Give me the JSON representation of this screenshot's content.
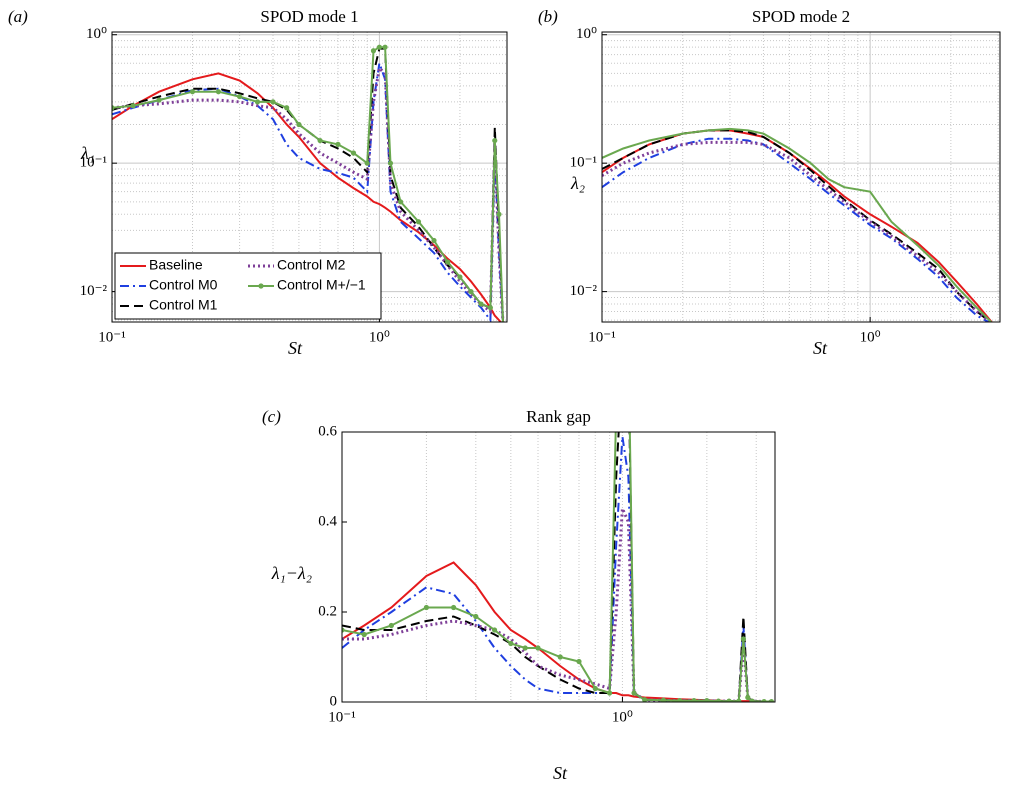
{
  "chart_data": [
    {
      "type": "line",
      "title": "SPOD mode 1",
      "panel_label": "(a)",
      "xlabel": "St",
      "ylabel": "λ₁",
      "xscale": "log",
      "yscale": "log",
      "xlim": [
        0.1,
        3
      ],
      "ylim": [
        0.0058,
        1.05
      ],
      "xticks": [
        {
          "value": 0.1,
          "label": "10⁻¹"
        },
        {
          "value": 1,
          "label": "10⁰"
        }
      ],
      "yticks": [
        {
          "value": 0.01,
          "label": "10⁻²"
        },
        {
          "value": 0.1,
          "label": "10⁻¹"
        },
        {
          "value": 1,
          "label": "10⁰"
        }
      ],
      "xminor": [
        0.2,
        0.3,
        0.4,
        0.5,
        0.6,
        0.7,
        0.8,
        0.9,
        2
      ],
      "yminor": [
        0.006,
        0.007,
        0.008,
        0.009,
        0.02,
        0.03,
        0.04,
        0.05,
        0.06,
        0.07,
        0.08,
        0.09,
        0.2,
        0.3,
        0.4,
        0.5,
        0.6,
        0.7,
        0.8,
        0.9
      ],
      "xgrid": true,
      "ygrid": true,
      "legend": "lower left",
      "legend_columns": 2,
      "x": [
        0.1,
        0.12,
        0.15,
        0.2,
        0.25,
        0.3,
        0.35,
        0.4,
        0.45,
        0.5,
        0.6,
        0.7,
        0.8,
        0.9,
        0.95,
        1.0,
        1.05,
        1.1,
        1.2,
        1.4,
        1.6,
        1.8,
        2.0,
        2.2,
        2.4,
        2.6,
        2.7,
        2.8,
        2.9
      ],
      "series": [
        {
          "name": "Baseline",
          "color": "#e41a1c",
          "dash": "solid",
          "values": [
            0.22,
            0.28,
            0.36,
            0.45,
            0.5,
            0.44,
            0.35,
            0.27,
            0.2,
            0.16,
            0.1,
            0.077,
            0.064,
            0.055,
            0.05,
            0.048,
            0.045,
            0.042,
            0.036,
            0.029,
            0.023,
            0.018,
            0.015,
            0.012,
            0.0095,
            0.0075,
            0.0065,
            0.006,
            0.0055
          ]
        },
        {
          "name": "Control M0",
          "color": "#1f3fe0",
          "dash": "dashdot",
          "values": [
            0.24,
            0.27,
            0.31,
            0.37,
            0.38,
            0.33,
            0.28,
            0.22,
            0.14,
            0.11,
            0.09,
            0.084,
            0.077,
            0.06,
            0.3,
            0.6,
            0.45,
            0.06,
            0.035,
            0.026,
            0.02,
            0.014,
            0.011,
            0.009,
            0.0075,
            0.006,
            0.12,
            0.02,
            0.0055
          ]
        },
        {
          "name": "Control M1",
          "color": "#000000",
          "dash": "dashed",
          "values": [
            0.26,
            0.29,
            0.33,
            0.38,
            0.38,
            0.35,
            0.32,
            0.3,
            0.26,
            0.2,
            0.15,
            0.13,
            0.11,
            0.085,
            0.5,
            0.78,
            0.78,
            0.08,
            0.045,
            0.032,
            0.022,
            0.016,
            0.013,
            0.01,
            0.008,
            0.0075,
            0.19,
            0.03,
            0.0055
          ]
        },
        {
          "name": "Control M2",
          "color": "#7e3f98",
          "dash": "dotted",
          "values": [
            0.27,
            0.28,
            0.29,
            0.31,
            0.31,
            0.3,
            0.28,
            0.27,
            0.22,
            0.17,
            0.12,
            0.1,
            0.085,
            0.075,
            0.3,
            0.55,
            0.5,
            0.07,
            0.042,
            0.03,
            0.022,
            0.016,
            0.012,
            0.0095,
            0.008,
            0.007,
            0.14,
            0.02,
            0.0055
          ]
        },
        {
          "name": "Control M+/−1",
          "color": "#6aa84f",
          "dash": "solid",
          "marker": "circle",
          "values": [
            0.27,
            0.28,
            0.31,
            0.36,
            0.36,
            0.33,
            0.3,
            0.3,
            0.27,
            0.2,
            0.15,
            0.14,
            0.12,
            0.1,
            0.75,
            0.8,
            0.8,
            0.1,
            0.05,
            0.035,
            0.025,
            0.017,
            0.013,
            0.01,
            0.008,
            0.0075,
            0.15,
            0.04,
            0.0055
          ]
        }
      ]
    },
    {
      "type": "line",
      "title": "SPOD mode 2",
      "panel_label": "(b)",
      "xlabel": "St",
      "ylabel": "λ₂",
      "xscale": "log",
      "yscale": "log",
      "xlim": [
        0.1,
        3.05
      ],
      "ylim": [
        0.0058,
        1.05
      ],
      "xticks": [
        {
          "value": 0.1,
          "label": "10⁻¹"
        },
        {
          "value": 1,
          "label": "10⁰"
        }
      ],
      "yticks": [
        {
          "value": 0.01,
          "label": "10⁻²"
        },
        {
          "value": 0.1,
          "label": "10⁻¹"
        },
        {
          "value": 1,
          "label": "10⁰"
        }
      ],
      "xminor": [
        0.2,
        0.3,
        0.4,
        0.5,
        0.6,
        0.7,
        0.8,
        0.9,
        2,
        3
      ],
      "yminor": [
        0.006,
        0.007,
        0.008,
        0.009,
        0.02,
        0.03,
        0.04,
        0.05,
        0.06,
        0.07,
        0.08,
        0.09,
        0.2,
        0.3,
        0.4,
        0.5,
        0.6,
        0.7,
        0.8,
        0.9
      ],
      "xgrid": true,
      "ygrid": true,
      "x": [
        0.1,
        0.12,
        0.15,
        0.2,
        0.25,
        0.3,
        0.35,
        0.4,
        0.5,
        0.6,
        0.7,
        0.8,
        1.0,
        1.2,
        1.5,
        1.8,
        2.1,
        2.5,
        2.9
      ],
      "series": [
        {
          "color": "#e41a1c",
          "dash": "solid",
          "values": [
            0.085,
            0.11,
            0.14,
            0.17,
            0.18,
            0.18,
            0.17,
            0.16,
            0.12,
            0.09,
            0.07,
            0.055,
            0.04,
            0.032,
            0.024,
            0.017,
            0.012,
            0.008,
            0.0055
          ]
        },
        {
          "color": "#1f3fe0",
          "dash": "dashdot",
          "values": [
            0.065,
            0.085,
            0.11,
            0.14,
            0.155,
            0.155,
            0.15,
            0.14,
            0.1,
            0.075,
            0.058,
            0.047,
            0.033,
            0.026,
            0.018,
            0.013,
            0.009,
            0.0065,
            0.0055
          ]
        },
        {
          "color": "#000000",
          "dash": "dashed",
          "values": [
            0.09,
            0.11,
            0.14,
            0.17,
            0.18,
            0.18,
            0.175,
            0.16,
            0.12,
            0.088,
            0.066,
            0.052,
            0.036,
            0.028,
            0.02,
            0.015,
            0.01,
            0.007,
            0.0055
          ]
        },
        {
          "color": "#7e3f98",
          "dash": "dotted",
          "values": [
            0.08,
            0.1,
            0.12,
            0.14,
            0.145,
            0.145,
            0.145,
            0.14,
            0.11,
            0.08,
            0.062,
            0.05,
            0.035,
            0.027,
            0.019,
            0.014,
            0.01,
            0.007,
            0.0055
          ]
        },
        {
          "color": "#6aa84f",
          "dash": "solid",
          "values": [
            0.11,
            0.13,
            0.15,
            0.17,
            0.18,
            0.185,
            0.18,
            0.17,
            0.13,
            0.1,
            0.075,
            0.065,
            0.06,
            0.035,
            0.023,
            0.016,
            0.011,
            0.0075,
            0.0055
          ]
        }
      ]
    },
    {
      "type": "line",
      "title": "Rank gap",
      "panel_label": "(c)",
      "xlabel": "St",
      "ylabel": "λ₁−λ₂",
      "xscale": "log",
      "yscale": "linear",
      "xlim": [
        0.1,
        3.5
      ],
      "ylim": [
        0,
        0.6
      ],
      "xticks": [
        {
          "value": 0.1,
          "label": "10⁻¹"
        },
        {
          "value": 1,
          "label": "10⁰"
        }
      ],
      "yticks": [
        0,
        0.2,
        0.4,
        0.6
      ],
      "xminor": [
        0.2,
        0.3,
        0.4,
        0.5,
        0.6,
        0.7,
        0.8,
        0.9,
        2,
        3
      ],
      "xgrid": true,
      "ygrid": false,
      "x": [
        0.1,
        0.12,
        0.15,
        0.2,
        0.25,
        0.3,
        0.35,
        0.4,
        0.45,
        0.5,
        0.6,
        0.7,
        0.8,
        0.9,
        0.95,
        1.0,
        1.05,
        1.1,
        1.2,
        1.4,
        1.6,
        1.8,
        2.0,
        2.2,
        2.4,
        2.6,
        2.7,
        2.8,
        2.9,
        3.2,
        3.4
      ],
      "series": [
        {
          "color": "#e41a1c",
          "dash": "solid",
          "values": [
            0.14,
            0.17,
            0.21,
            0.28,
            0.31,
            0.26,
            0.2,
            0.16,
            0.14,
            0.12,
            0.08,
            0.05,
            0.03,
            0.02,
            0.02,
            0.015,
            0.015,
            0.012,
            0.01,
            0.008,
            0.006,
            0.005,
            0.004,
            0.003,
            0.002,
            0.002,
            0.002,
            0.002,
            0.002,
            0.001,
            0.001
          ]
        },
        {
          "color": "#1f3fe0",
          "dash": "dashdot",
          "values": [
            0.12,
            0.16,
            0.2,
            0.255,
            0.24,
            0.18,
            0.12,
            0.08,
            0.05,
            0.03,
            0.02,
            0.02,
            0.02,
            0.02,
            0.35,
            0.59,
            0.5,
            0.02,
            0.005,
            0.004,
            0.003,
            0.003,
            0.003,
            0.002,
            0.002,
            0.002,
            0.17,
            0.01,
            0.002,
            0.001,
            0.001
          ]
        },
        {
          "color": "#000000",
          "dash": "dashed",
          "values": [
            0.17,
            0.16,
            0.16,
            0.18,
            0.19,
            0.17,
            0.15,
            0.13,
            0.1,
            0.08,
            0.05,
            0.03,
            0.02,
            0.02,
            0.5,
            0.75,
            0.75,
            0.02,
            0.005,
            0.004,
            0.003,
            0.003,
            0.003,
            0.002,
            0.002,
            0.002,
            0.19,
            0.01,
            0.002,
            0.001,
            0.001
          ]
        },
        {
          "color": "#7e3f98",
          "dash": "dotted",
          "values": [
            0.14,
            0.14,
            0.15,
            0.17,
            0.18,
            0.17,
            0.16,
            0.14,
            0.11,
            0.08,
            0.06,
            0.05,
            0.04,
            0.03,
            0.2,
            0.43,
            0.4,
            0.02,
            0.005,
            0.004,
            0.003,
            0.003,
            0.003,
            0.002,
            0.002,
            0.002,
            0.13,
            0.01,
            0.002,
            0.001,
            0.001
          ]
        },
        {
          "color": "#6aa84f",
          "dash": "solid",
          "marker": "circle",
          "values": [
            0.16,
            0.15,
            0.17,
            0.21,
            0.21,
            0.19,
            0.16,
            0.13,
            0.12,
            0.12,
            0.1,
            0.09,
            0.03,
            0.02,
            0.65,
            0.8,
            0.8,
            0.02,
            0.005,
            0.004,
            0.003,
            0.003,
            0.003,
            0.002,
            0.002,
            0.002,
            0.14,
            0.01,
            0.002,
            0.001,
            0.001
          ]
        }
      ]
    }
  ]
}
